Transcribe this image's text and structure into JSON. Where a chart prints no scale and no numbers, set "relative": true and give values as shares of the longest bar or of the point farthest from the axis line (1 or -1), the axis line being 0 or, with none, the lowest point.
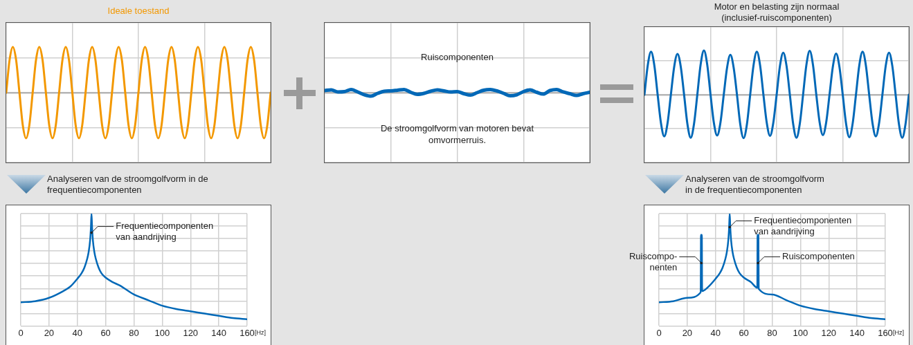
{
  "chart_data": [
    {
      "type": "line",
      "title": "Ideale toestand",
      "relative": true,
      "grid": true,
      "categories": [
        null,
        null,
        null,
        null,
        null,
        null,
        null,
        null,
        null,
        null,
        null,
        null,
        null,
        null,
        null,
        null,
        null,
        null,
        null,
        null,
        null,
        null,
        null,
        null,
        null,
        null,
        null,
        null,
        null,
        null,
        null,
        null,
        null,
        null,
        null,
        null,
        null,
        null,
        null,
        null,
        null,
        null,
        null,
        null,
        null,
        null,
        null,
        null,
        null,
        null,
        null,
        null,
        null,
        null,
        null,
        null,
        null,
        null,
        null,
        null,
        null,
        null,
        null,
        null,
        null,
        null,
        null,
        null,
        null,
        null,
        null,
        null,
        null,
        null,
        null,
        null,
        null,
        null,
        null,
        null,
        null
      ],
      "series": [
        {
          "color": "#f39800",
          "values": [
            0,
            0.71,
            1,
            0.71,
            0,
            -0.71,
            -1,
            -0.71,
            0,
            0.71,
            1,
            0.71,
            0,
            -0.71,
            -1,
            -0.71,
            0,
            0.71,
            1,
            0.71,
            0,
            -0.71,
            -1,
            -0.71,
            0,
            0.71,
            1,
            0.71,
            0,
            -0.71,
            -1,
            -0.71,
            0,
            0.71,
            1,
            0.71,
            0,
            -0.71,
            -1,
            -0.71,
            0,
            0.71,
            1,
            0.71,
            0,
            -0.71,
            -1,
            -0.71,
            0,
            0.71,
            1,
            0.71,
            0,
            -0.71,
            -1,
            -0.71,
            0,
            0.71,
            1,
            0.71,
            0,
            -0.71,
            -1,
            -0.71,
            0,
            0.71,
            1,
            0.71,
            0,
            -0.71,
            -1,
            -0.71,
            0,
            0.71,
            1,
            0.71,
            0,
            -0.71,
            -1,
            -0.71,
            0
          ]
        }
      ]
    },
    {
      "type": "line",
      "relative": true,
      "grid": true,
      "categories": [
        null,
        null,
        null,
        null,
        null,
        null,
        null,
        null,
        null,
        null,
        null,
        null,
        null,
        null,
        null,
        null,
        null,
        null,
        null,
        null,
        null,
        null,
        null,
        null,
        null,
        null,
        null,
        null,
        null,
        null,
        null,
        null,
        null,
        null,
        null,
        null,
        null,
        null,
        null,
        null,
        null
      ],
      "series": [
        {
          "color": "#0068b7",
          "values": [
            0.6,
            0.8,
            0.2,
            0.3,
            0.9,
            0.2,
            -0.6,
            -1,
            -0.2,
            0.4,
            0.5,
            0.7,
            0.9,
            0.1,
            -0.5,
            -0.2,
            0.4,
            0.8,
            0.5,
            0.2,
            0.3,
            -0.3,
            -0.7,
            0,
            0.7,
            0.9,
            0.5,
            -0.2,
            -0.9,
            -0.6,
            0.3,
            0.8,
            0.1,
            -0.4,
            0.6,
            0.9,
            0.2,
            -0.3,
            -0.8,
            -0.3,
            0.1
          ]
        }
      ],
      "annotations": [
        "Ruiscomponenten",
        "De stroomgolfvorm van motoren bevat\nomvormerruis."
      ]
    },
    {
      "type": "line",
      "title": "Motor en belasting zijn normaal\n(inclusief-ruiscomponenten)",
      "relative": true,
      "grid": true,
      "categories": [
        null,
        null,
        null,
        null,
        null,
        null,
        null,
        null,
        null,
        null,
        null,
        null,
        null,
        null,
        null,
        null,
        null,
        null,
        null,
        null,
        null,
        null,
        null,
        null,
        null,
        null,
        null,
        null,
        null,
        null,
        null,
        null,
        null,
        null,
        null,
        null,
        null,
        null,
        null,
        null,
        null,
        null,
        null,
        null,
        null,
        null,
        null,
        null,
        null,
        null,
        null,
        null,
        null,
        null,
        null,
        null,
        null,
        null,
        null,
        null,
        null,
        null,
        null,
        null,
        null,
        null,
        null,
        null,
        null,
        null,
        null,
        null,
        null,
        null,
        null,
        null,
        null,
        null,
        null,
        null,
        null
      ],
      "series": [
        {
          "color": "#0068b7",
          "values": [
            0,
            0.66,
            0.97,
            0.66,
            0,
            -0.64,
            -0.94,
            -0.64,
            0,
            0.63,
            0.92,
            0.63,
            0,
            -0.66,
            -0.97,
            -0.66,
            0,
            0.68,
            1,
            0.68,
            0,
            -0.63,
            -0.92,
            -0.63,
            0,
            0.61,
            0.9,
            0.61,
            0,
            -0.67,
            -0.98,
            -0.67,
            0,
            0.66,
            0.97,
            0.66,
            0,
            -0.63,
            -0.93,
            -0.63,
            0,
            0.65,
            0.95,
            0.65,
            0,
            -0.66,
            -0.97,
            -0.66,
            0,
            0.67,
            0.99,
            0.67,
            0,
            -0.62,
            -0.91,
            -0.62,
            0,
            0.63,
            0.93,
            0.63,
            0,
            -0.65,
            -0.96,
            -0.65,
            0,
            0.66,
            0.97,
            0.66,
            0,
            -0.64,
            -0.94,
            -0.64,
            0,
            0.65,
            0.95,
            0.65,
            0,
            -0.66,
            -0.97,
            -0.66,
            0
          ]
        }
      ]
    },
    {
      "type": "line",
      "title": "Analyseren van de stroomgolfvorm in de\nfrequentiecomponenten",
      "relative": true,
      "grid": true,
      "xlabel": "[Hz]",
      "xlim": [
        0,
        160
      ],
      "xticks": [
        0,
        20,
        40,
        60,
        80,
        100,
        120,
        140,
        160
      ],
      "series": [
        {
          "color": "#0068b7",
          "x": [
            0,
            10,
            20,
            30,
            35,
            40,
            43,
            45,
            47,
            48,
            49,
            49.6,
            50,
            50.4,
            51,
            52,
            53,
            55,
            57,
            60,
            65,
            70,
            80,
            90,
            100,
            110,
            120,
            130,
            140,
            150,
            160
          ],
          "values": [
            0.21,
            0.22,
            0.25,
            0.31,
            0.35,
            0.42,
            0.47,
            0.52,
            0.6,
            0.66,
            0.76,
            0.88,
            1,
            0.88,
            0.76,
            0.66,
            0.6,
            0.52,
            0.47,
            0.43,
            0.39,
            0.36,
            0.28,
            0.23,
            0.18,
            0.15,
            0.13,
            0.11,
            0.09,
            0.07,
            0.06
          ]
        }
      ],
      "annotations": [
        {
          "text": "Frequentiecomponenten\nvan aandrijving",
          "x": 50,
          "y": 0.83
        }
      ]
    },
    {
      "type": "line",
      "title": "Analyseren van de stroomgolfvorm\nin de frequentiecomponenten",
      "relative": true,
      "grid": true,
      "xlabel": "[Hz]",
      "xlim": [
        0,
        160
      ],
      "xticks": [
        0,
        20,
        40,
        60,
        80,
        100,
        120,
        140,
        160
      ],
      "series": [
        {
          "color": "#0068b7",
          "x": [
            0,
            10,
            20,
            29.5,
            29.7,
            30.3,
            30.5,
            35,
            40,
            43,
            45,
            47,
            48,
            49,
            49.6,
            50,
            50.4,
            51,
            52,
            53,
            55,
            57,
            60,
            65,
            69.5,
            69.7,
            70.3,
            70.5,
            80,
            90,
            100,
            110,
            120,
            130,
            140,
            150,
            160
          ],
          "values": [
            0.21,
            0.22,
            0.25,
            0.3,
            0.81,
            0.81,
            0.31,
            0.35,
            0.42,
            0.47,
            0.52,
            0.6,
            0.66,
            0.76,
            0.88,
            1,
            0.88,
            0.76,
            0.66,
            0.6,
            0.52,
            0.47,
            0.43,
            0.39,
            0.34,
            0.81,
            0.81,
            0.33,
            0.28,
            0.23,
            0.18,
            0.15,
            0.13,
            0.11,
            0.09,
            0.07,
            0.06
          ]
        }
      ],
      "annotations": [
        {
          "text": "Frequentiecomponenten\nvan aandrijving",
          "x": 50,
          "y": 0.88
        },
        {
          "text": "Ruiscompo-\nnenten",
          "x": 30,
          "y": 0.56
        },
        {
          "text": "Ruiscomponenten",
          "x": 70,
          "y": 0.56
        }
      ]
    }
  ]
}
